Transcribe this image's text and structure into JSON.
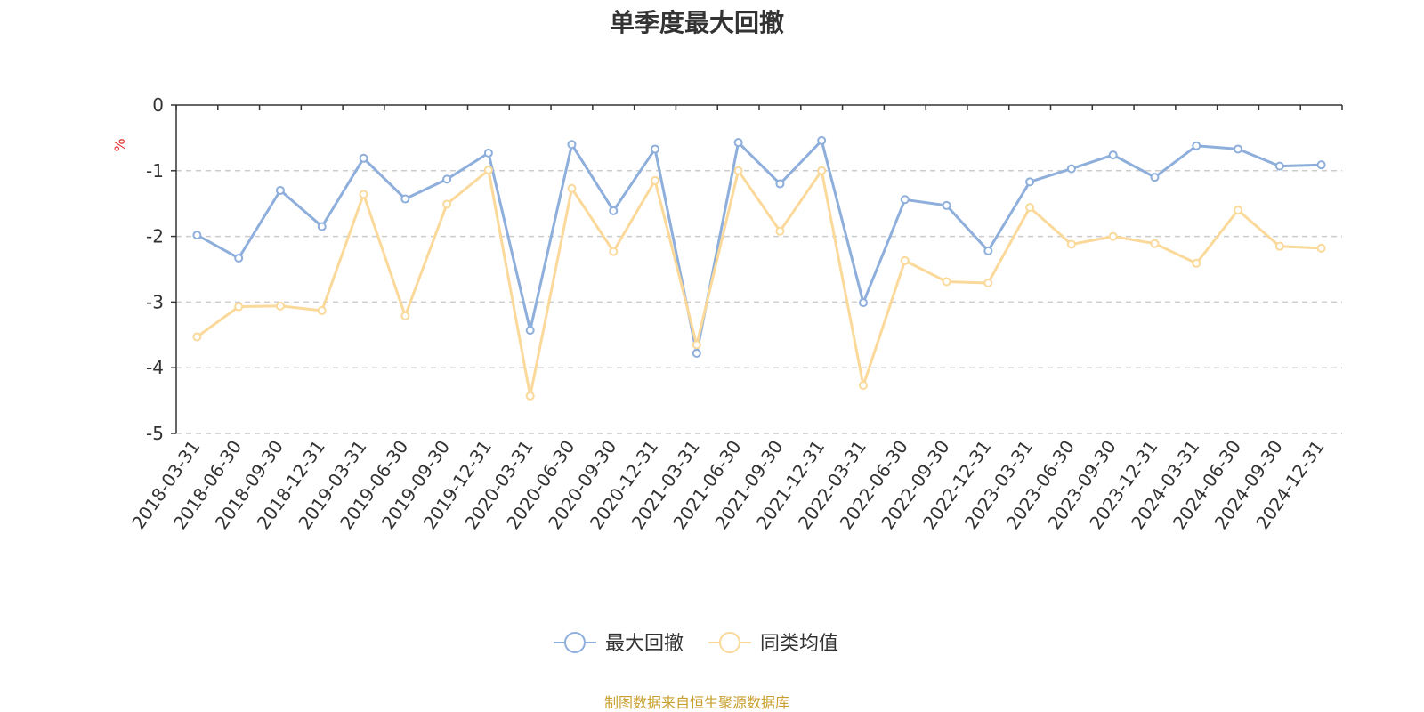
{
  "chart_data": {
    "type": "line",
    "title": "单季度最大回撤",
    "ylabel": "%",
    "xlabel": "",
    "ylim": [
      -5,
      0
    ],
    "yticks": [
      0,
      -1,
      -2,
      -3,
      -4,
      -5
    ],
    "grid": "horizontal dashed",
    "legend_position": "bottom-center",
    "categories": [
      "2018-03-31",
      "2018-06-30",
      "2018-09-30",
      "2018-12-31",
      "2019-03-31",
      "2019-06-30",
      "2019-09-30",
      "2019-12-31",
      "2020-03-31",
      "2020-06-30",
      "2020-09-30",
      "2020-12-31",
      "2021-03-31",
      "2021-06-30",
      "2021-09-30",
      "2021-12-31",
      "2022-03-31",
      "2022-06-30",
      "2022-09-30",
      "2022-12-31",
      "2023-03-31",
      "2023-06-30",
      "2023-09-30",
      "2023-12-31",
      "2024-03-31",
      "2024-06-30",
      "2024-09-30",
      "2024-12-31"
    ],
    "series": [
      {
        "name": "最大回撤",
        "color": "#8eaedb",
        "values": [
          -1.98,
          -2.33,
          -1.3,
          -1.85,
          -0.81,
          -1.43,
          -1.13,
          -0.73,
          -3.43,
          -0.6,
          -1.61,
          -0.67,
          -3.78,
          -0.57,
          -1.2,
          -0.54,
          -3.01,
          -1.44,
          -1.53,
          -2.22,
          -1.17,
          -0.97,
          -0.76,
          -1.1,
          -0.62,
          -0.67,
          -0.93,
          -0.91
        ]
      },
      {
        "name": "同类均值",
        "color": "#fad99a",
        "values": [
          -3.53,
          -3.07,
          -3.06,
          -3.13,
          -1.36,
          -3.21,
          -1.51,
          -0.99,
          -4.43,
          -1.27,
          -2.23,
          -1.15,
          -3.65,
          -1.0,
          -1.92,
          -1.0,
          -4.27,
          -2.37,
          -2.69,
          -2.71,
          -1.56,
          -2.12,
          -2.0,
          -2.11,
          -2.41,
          -1.6,
          -2.15,
          -2.18
        ]
      }
    ]
  },
  "footer": {
    "source": "制图数据来自恒生聚源数据库"
  }
}
